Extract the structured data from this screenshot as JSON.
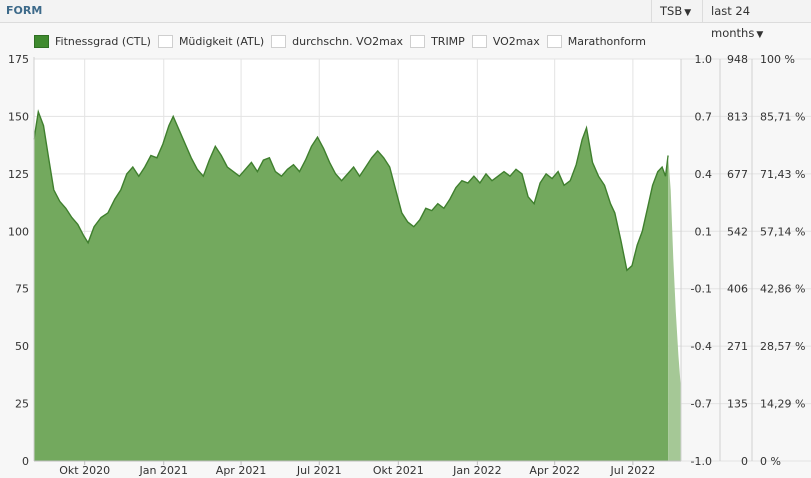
{
  "header": {
    "title": "FORM",
    "metric_dropdown": "TSB",
    "range_dropdown": "last 24 months"
  },
  "legend": [
    {
      "label": "Fitnessgrad (CTL)",
      "active": true
    },
    {
      "label": "Müdigkeit (ATL)",
      "active": false
    },
    {
      "label": "durchschn. VO2max",
      "active": false
    },
    {
      "label": "TRIMP",
      "active": false
    },
    {
      "label": "VO2max",
      "active": false
    },
    {
      "label": "Marathonform",
      "active": false
    }
  ],
  "colors": {
    "series_fill": "#73a95e",
    "series_line": "#3f7f2e",
    "forecast_fill": "#a5c896",
    "plot_background": "#ffffff"
  },
  "chart_data": {
    "type": "area",
    "x_tick_labels": [
      "Okt 2020",
      "Jan 2021",
      "Apr 2021",
      "Jul 2021",
      "Okt 2021",
      "Jan 2022",
      "Apr 2022",
      "Jul 2022"
    ],
    "x_ticks_dates": [
      "2020-10-01",
      "2021-01-01",
      "2021-04-01",
      "2021-07-01",
      "2021-10-01",
      "2022-01-01",
      "2022-04-01",
      "2022-07-01"
    ],
    "x_range": [
      "2020-08-03",
      "2022-08-26"
    ],
    "left_axis": {
      "range": [
        0,
        175
      ],
      "ticks": [
        "175",
        "150",
        "125",
        "100",
        "75",
        "50",
        "25",
        "0"
      ]
    },
    "right_axis_1": {
      "ticks": [
        "1.0",
        "0.7",
        "0.4",
        "0.1",
        "-0.1",
        "-0.4",
        "-0.7",
        "-1.0"
      ]
    },
    "right_axis_2": {
      "ticks": [
        "948",
        "813",
        "677",
        "542",
        "406",
        "271",
        "135",
        "0"
      ]
    },
    "right_axis_3": {
      "ticks": [
        "100 %",
        "85,71 %",
        "71,43 %",
        "57,14 %",
        "42,86 %",
        "28,57 %",
        "14,29 %",
        "0 %"
      ]
    },
    "grid": true,
    "series": [
      {
        "name": "Fitnessgrad (CTL)",
        "points": [
          [
            "2020-08-03",
            140
          ],
          [
            "2020-08-08",
            152
          ],
          [
            "2020-08-14",
            146
          ],
          [
            "2020-08-20",
            132
          ],
          [
            "2020-08-26",
            118
          ],
          [
            "2020-09-02",
            113
          ],
          [
            "2020-09-09",
            110
          ],
          [
            "2020-09-16",
            106
          ],
          [
            "2020-09-23",
            103
          ],
          [
            "2020-09-30",
            98
          ],
          [
            "2020-10-05",
            95
          ],
          [
            "2020-10-12",
            102
          ],
          [
            "2020-10-20",
            106
          ],
          [
            "2020-10-28",
            108
          ],
          [
            "2020-11-05",
            114
          ],
          [
            "2020-11-12",
            118
          ],
          [
            "2020-11-19",
            125
          ],
          [
            "2020-11-26",
            128
          ],
          [
            "2020-12-03",
            124
          ],
          [
            "2020-12-10",
            128
          ],
          [
            "2020-12-17",
            133
          ],
          [
            "2020-12-24",
            132
          ],
          [
            "2020-12-31",
            138
          ],
          [
            "2021-01-07",
            146
          ],
          [
            "2021-01-12",
            150
          ],
          [
            "2021-01-19",
            144
          ],
          [
            "2021-01-26",
            138
          ],
          [
            "2021-02-02",
            132
          ],
          [
            "2021-02-09",
            127
          ],
          [
            "2021-02-16",
            124
          ],
          [
            "2021-02-23",
            131
          ],
          [
            "2021-03-02",
            137
          ],
          [
            "2021-03-09",
            133
          ],
          [
            "2021-03-16",
            128
          ],
          [
            "2021-03-23",
            126
          ],
          [
            "2021-03-30",
            124
          ],
          [
            "2021-04-06",
            127
          ],
          [
            "2021-04-13",
            130
          ],
          [
            "2021-04-20",
            126
          ],
          [
            "2021-04-27",
            131
          ],
          [
            "2021-05-04",
            132
          ],
          [
            "2021-05-11",
            126
          ],
          [
            "2021-05-18",
            124
          ],
          [
            "2021-05-25",
            127
          ],
          [
            "2021-06-01",
            129
          ],
          [
            "2021-06-08",
            126
          ],
          [
            "2021-06-15",
            131
          ],
          [
            "2021-06-22",
            137
          ],
          [
            "2021-06-29",
            141
          ],
          [
            "2021-07-06",
            136
          ],
          [
            "2021-07-13",
            130
          ],
          [
            "2021-07-20",
            125
          ],
          [
            "2021-07-27",
            122
          ],
          [
            "2021-08-03",
            125
          ],
          [
            "2021-08-10",
            128
          ],
          [
            "2021-08-17",
            124
          ],
          [
            "2021-08-24",
            128
          ],
          [
            "2021-08-31",
            132
          ],
          [
            "2021-09-07",
            135
          ],
          [
            "2021-09-14",
            132
          ],
          [
            "2021-09-21",
            128
          ],
          [
            "2021-09-28",
            118
          ],
          [
            "2021-10-05",
            108
          ],
          [
            "2021-10-12",
            104
          ],
          [
            "2021-10-19",
            102
          ],
          [
            "2021-10-26",
            105
          ],
          [
            "2021-11-02",
            110
          ],
          [
            "2021-11-09",
            109
          ],
          [
            "2021-11-16",
            112
          ],
          [
            "2021-11-23",
            110
          ],
          [
            "2021-11-30",
            114
          ],
          [
            "2021-12-07",
            119
          ],
          [
            "2021-12-14",
            122
          ],
          [
            "2021-12-21",
            121
          ],
          [
            "2021-12-28",
            124
          ],
          [
            "2022-01-04",
            121
          ],
          [
            "2022-01-11",
            125
          ],
          [
            "2022-01-18",
            122
          ],
          [
            "2022-01-25",
            124
          ],
          [
            "2022-02-01",
            126
          ],
          [
            "2022-02-08",
            124
          ],
          [
            "2022-02-15",
            127
          ],
          [
            "2022-02-22",
            125
          ],
          [
            "2022-03-01",
            115
          ],
          [
            "2022-03-08",
            112
          ],
          [
            "2022-03-15",
            121
          ],
          [
            "2022-03-22",
            125
          ],
          [
            "2022-03-29",
            123
          ],
          [
            "2022-04-05",
            126
          ],
          [
            "2022-04-12",
            120
          ],
          [
            "2022-04-19",
            122
          ],
          [
            "2022-04-26",
            129
          ],
          [
            "2022-05-03",
            140
          ],
          [
            "2022-05-08",
            145
          ],
          [
            "2022-05-15",
            130
          ],
          [
            "2022-05-22",
            124
          ],
          [
            "2022-05-29",
            120
          ],
          [
            "2022-06-05",
            112
          ],
          [
            "2022-06-10",
            108
          ],
          [
            "2022-06-17",
            96
          ],
          [
            "2022-06-24",
            83
          ],
          [
            "2022-06-30",
            85
          ],
          [
            "2022-07-06",
            94
          ],
          [
            "2022-07-12",
            100
          ],
          [
            "2022-07-18",
            110
          ],
          [
            "2022-07-24",
            120
          ],
          [
            "2022-07-30",
            126
          ],
          [
            "2022-08-04",
            128
          ],
          [
            "2022-08-08",
            124
          ],
          [
            "2022-08-11",
            133
          ]
        ]
      },
      {
        "name": "Fitnessgrad (CTL)",
        "forecast": true,
        "points": [
          [
            "2022-08-11",
            133
          ],
          [
            "2022-08-14",
            118
          ],
          [
            "2022-08-17",
            88
          ],
          [
            "2022-08-20",
            65
          ],
          [
            "2022-08-23",
            46
          ],
          [
            "2022-08-26",
            31
          ]
        ]
      }
    ]
  }
}
